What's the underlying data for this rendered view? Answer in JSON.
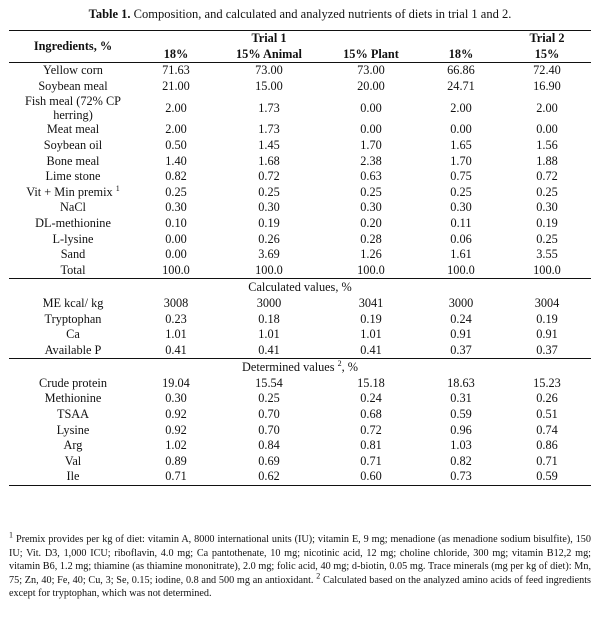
{
  "caption": {
    "label": "Table 1.",
    "text": "Composition, and calculated and analyzed nutrients of diets in trial 1 and 2."
  },
  "header": {
    "ingredients": "Ingredients, %",
    "trial1": "Trial 1",
    "trial2": "Trial 2",
    "cols": [
      "18%",
      "15% Animal",
      "15% Plant",
      "18%",
      "15%"
    ]
  },
  "ingredients": [
    {
      "name": "Yellow corn",
      "values": [
        "71.63",
        "73.00",
        "73.00",
        "66.86",
        "72.40"
      ]
    },
    {
      "name": "Soybean meal",
      "values": [
        "21.00",
        "15.00",
        "20.00",
        "24.71",
        "16.90"
      ]
    },
    {
      "name": "Fish meal (72% CP herring)",
      "values": [
        "2.00",
        "1.73",
        "0.00",
        "2.00",
        "2.00"
      ]
    },
    {
      "name": "Meat meal",
      "values": [
        "2.00",
        "1.73",
        "0.00",
        "0.00",
        "0.00"
      ]
    },
    {
      "name": "Soybean oil",
      "values": [
        "0.50",
        "1.45",
        "1.70",
        "1.65",
        "1.56"
      ]
    },
    {
      "name": "Bone meal",
      "values": [
        "1.40",
        "1.68",
        "2.38",
        "1.70",
        "1.88"
      ]
    },
    {
      "name": "Lime stone",
      "values": [
        "0.82",
        "0.72",
        "0.63",
        "0.75",
        "0.72"
      ]
    },
    {
      "name": "Vit + Min premix",
      "sup": "1",
      "values": [
        "0.25",
        "0.25",
        "0.25",
        "0.25",
        "0.25"
      ]
    },
    {
      "name": "NaCl",
      "values": [
        "0.30",
        "0.30",
        "0.30",
        "0.30",
        "0.30"
      ]
    },
    {
      "name": "DL-methionine",
      "values": [
        "0.10",
        "0.19",
        "0.20",
        "0.11",
        "0.19"
      ]
    },
    {
      "name": "L-lysine",
      "values": [
        "0.00",
        "0.26",
        "0.28",
        "0.06",
        "0.25"
      ]
    },
    {
      "name": "Sand",
      "values": [
        "0.00",
        "3.69",
        "1.26",
        "1.61",
        "3.55"
      ]
    },
    {
      "name": "Total",
      "values": [
        "100.0",
        "100.0",
        "100.0",
        "100.0",
        "100.0"
      ]
    }
  ],
  "calculated": {
    "heading": "Calculated values, %",
    "rows": [
      {
        "name": "ME kcal/ kg",
        "values": [
          "3008",
          "3000",
          "3041",
          "3000",
          "3004"
        ]
      },
      {
        "name": "Tryptophan",
        "values": [
          "0.23",
          "0.18",
          "0.19",
          "0.24",
          "0.19"
        ]
      },
      {
        "name": "Ca",
        "values": [
          "1.01",
          "1.01",
          "1.01",
          "0.91",
          "0.91"
        ]
      },
      {
        "name": "Available P",
        "values": [
          "0.41",
          "0.41",
          "0.41",
          "0.37",
          "0.37"
        ]
      }
    ]
  },
  "determined": {
    "heading": "Determined values",
    "heading_sup": "2",
    "heading_suffix": ", %",
    "rows": [
      {
        "name": "Crude protein",
        "values": [
          "19.04",
          "15.54",
          "15.18",
          "18.63",
          "15.23"
        ]
      },
      {
        "name": "Methionine",
        "values": [
          "0.30",
          "0.25",
          "0.24",
          "0.31",
          "0.26"
        ]
      },
      {
        "name": "TSAA",
        "values": [
          "0.92",
          "0.70",
          "0.68",
          "0.59",
          "0.51"
        ]
      },
      {
        "name": "Lysine",
        "values": [
          "0.92",
          "0.70",
          "0.72",
          "0.96",
          "0.74"
        ]
      },
      {
        "name": "Arg",
        "values": [
          "1.02",
          "0.84",
          "0.81",
          "1.03",
          "0.86"
        ]
      },
      {
        "name": "Val",
        "values": [
          "0.89",
          "0.69",
          "0.71",
          "0.82",
          "0.71"
        ]
      },
      {
        "name": "Ile",
        "values": [
          "0.71",
          "0.62",
          "0.60",
          "0.73",
          "0.59"
        ]
      }
    ]
  },
  "footnotes": {
    "sup1": "1",
    "note1": "Premix provides per kg of diet: vitamin A, 8000 international units (IU); vitamin E, 9 mg; menadione (as menadione sodium bisulfite), 150 IU; Vit. D3, 1,000 ICU; riboflavin, 4.0 mg; Ca pantothenate, 10 mg; nicotinic acid, 12 mg; choline chloride, 300 mg; vitamin B12,2 mg; vitamin B6, 1.2 mg; thiamine (as thiamine mononitrate), 2.0 mg; folic acid, 40 mg; d-biotin, 0.05 mg. Trace minerals (mg per kg of diet): Mn, 75; Zn, 40; Fe, 40; Cu, 3; Se, 0.15; iodine, 0.8 and 500 mg an antioxidant.",
    "sup2": "2",
    "note2": "Calculated based on the analyzed amino acids of feed ingredients except for tryptophan, which was not determined."
  }
}
